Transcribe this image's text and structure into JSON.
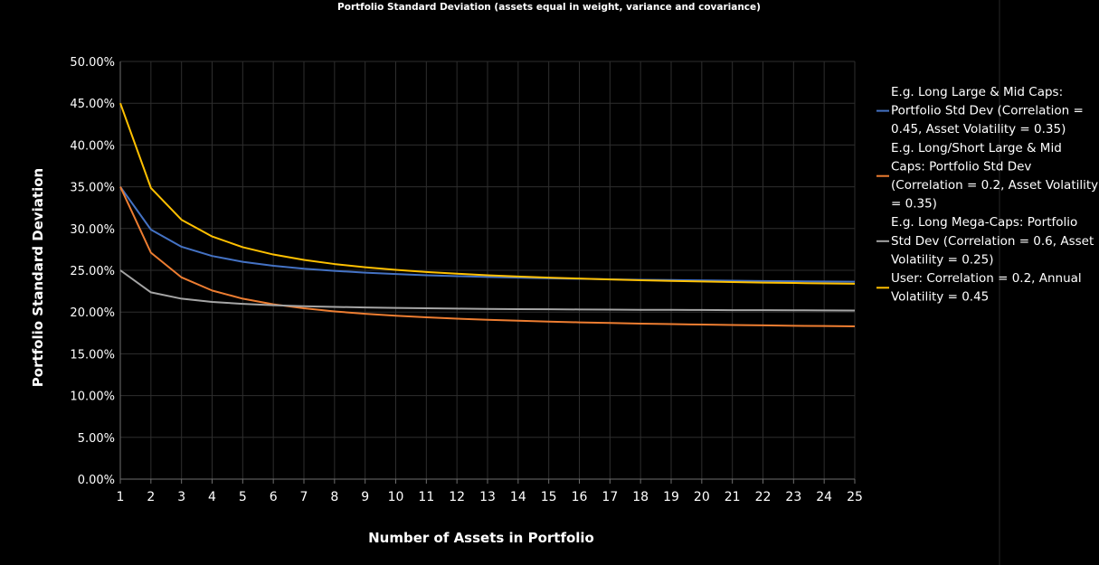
{
  "chart_data": {
    "type": "line",
    "title": "Portfolio Standard Deviation (assets equal in weight, variance and covariance)",
    "xlabel": "Number of Assets in Portfolio",
    "ylabel": "Portfolio Standard Deviation",
    "x": [
      1,
      2,
      3,
      4,
      5,
      6,
      7,
      8,
      9,
      10,
      11,
      12,
      13,
      14,
      15,
      16,
      17,
      18,
      19,
      20,
      21,
      22,
      23,
      24,
      25
    ],
    "xlim": [
      1,
      25
    ],
    "ylim": [
      0,
      0.5
    ],
    "y_ticks": [
      {
        "value": 0.5,
        "label": "50.00%"
      },
      {
        "value": 0.45,
        "label": "45.00%"
      },
      {
        "value": 0.4,
        "label": "40.00%"
      },
      {
        "value": 0.35,
        "label": "35.00%"
      },
      {
        "value": 0.3,
        "label": "30.00%"
      },
      {
        "value": 0.25,
        "label": "25.00%"
      },
      {
        "value": 0.2,
        "label": "20.00%"
      },
      {
        "value": 0.15,
        "label": "15.00%"
      },
      {
        "value": 0.1,
        "label": "10.00%"
      },
      {
        "value": 0.05,
        "label": "5.00%"
      },
      {
        "value": 0.0,
        "label": "0.00%"
      }
    ],
    "x_tick_labels": [
      "1",
      "2",
      "3",
      "4",
      "5",
      "6",
      "7",
      "8",
      "9",
      "10",
      "11",
      "12",
      "13",
      "14",
      "15",
      "16",
      "17",
      "18",
      "19",
      "20",
      "21",
      "22",
      "23",
      "24",
      "25"
    ],
    "grid": true,
    "legend_position": "right",
    "series": [
      {
        "name": "E.g. Long Large & Mid Caps: Portfolio Std Dev (Correlation = 0.45, Asset Volatility = 0.35)",
        "legend_lines": [
          "E.g. Long Large & Mid Caps:",
          "Portfolio Std Dev (Correlation =",
          "0.45, Asset Volatility = 0.35)"
        ],
        "color": "#4472c4",
        "values": [
          0.35,
          0.2987,
          0.2782,
          0.2671,
          0.2602,
          0.2554,
          0.2519,
          0.2493,
          0.2472,
          0.2455,
          0.2441,
          0.243,
          0.242,
          0.2412,
          0.2404,
          0.2398,
          0.2392,
          0.2387,
          0.2383,
          0.2379,
          0.2375,
          0.2372,
          0.2369,
          0.2366,
          0.2363
        ]
      },
      {
        "name": "E.g. Long/Short Large & Mid Caps: Portfolio Std Dev (Correlation = 0.2, Asset Volatility = 0.35)",
        "legend_lines": [
          "E.g. Long/Short Large & Mid",
          "Caps: Portfolio Std Dev",
          "(Correlation = 0.2, Asset Volatility",
          "= 0.35)"
        ],
        "color": "#ed7d31",
        "values": [
          0.35,
          0.2711,
          0.2415,
          0.2258,
          0.216,
          0.2093,
          0.2045,
          0.2008,
          0.1979,
          0.1956,
          0.1937,
          0.1921,
          0.1908,
          0.1896,
          0.1886,
          0.1877,
          0.187,
          0.1862,
          0.1856,
          0.185,
          0.1845,
          0.1841,
          0.1836,
          0.1833,
          0.1829
        ]
      },
      {
        "name": "E.g. Long Mega-Caps: Portfolio Std Dev (Correlation = 0.6, Asset Volatility = 0.25)",
        "legend_lines": [
          "E.g. Long Mega-Caps: Portfolio",
          "Std Dev (Correlation = 0.6, Asset",
          "Volatility = 0.25)"
        ],
        "color": "#a5a5a5",
        "values": [
          0.25,
          0.2236,
          0.216,
          0.2121,
          0.2098,
          0.2082,
          0.207,
          0.2062,
          0.2055,
          0.2049,
          0.2045,
          0.2041,
          0.2038,
          0.2035,
          0.2033,
          0.2031,
          0.2029,
          0.2027,
          0.2026,
          0.2025,
          0.2023,
          0.2022,
          0.2021,
          0.202,
          0.2019
        ]
      },
      {
        "name": "User: Correlation = 0.2, Annual Volatility = 0.45",
        "legend_lines": [
          "User: Correlation = 0.2, Annual",
          "Volatility = 0.45"
        ],
        "color": "#ffc000",
        "values": [
          0.45,
          0.3486,
          0.3105,
          0.2905,
          0.2777,
          0.2689,
          0.2624,
          0.2575,
          0.2537,
          0.2506,
          0.248,
          0.2459,
          0.2441,
          0.2426,
          0.2412,
          0.2401,
          0.2391,
          0.2381,
          0.2373,
          0.2366,
          0.2359,
          0.2353,
          0.2348,
          0.2343,
          0.2339
        ]
      }
    ]
  }
}
